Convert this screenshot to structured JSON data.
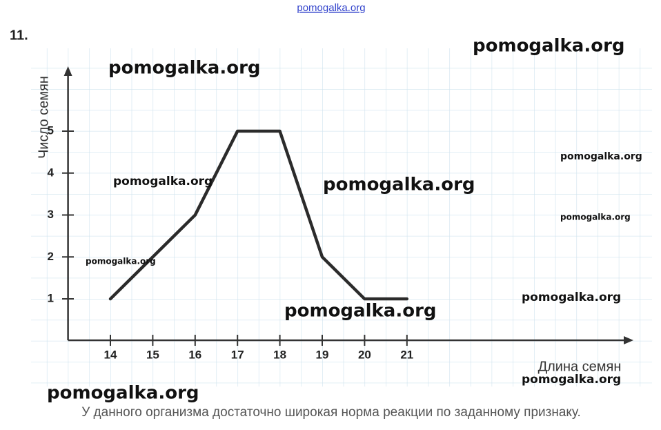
{
  "source_link": "pomogalka.org",
  "problem_number": "11.",
  "chart_data": {
    "type": "line",
    "x": [
      14,
      16,
      17,
      18,
      19,
      20,
      21
    ],
    "values": [
      1,
      3,
      5,
      5,
      2,
      1,
      1
    ],
    "color": "#2b2b2b",
    "xlabel": "Длина семян",
    "ylabel": "Число семян",
    "xlim": [
      13,
      26.3
    ],
    "ylim": [
      0,
      6.5
    ],
    "xticks": [
      14,
      15,
      16,
      17,
      18,
      19,
      20,
      21
    ],
    "yticks": [
      1,
      2,
      3,
      4,
      5
    ]
  },
  "watermarks": [
    "pomogalka.org",
    "pomogalka.org",
    "pomogalka.org",
    "pomogalka.org",
    "pomogalka.org",
    "pomogalka.org",
    "pomogalka.org",
    "pomogalka.org",
    "pomogalka.org",
    "pomogalka.org",
    "pomogalka.org"
  ],
  "answer": "У данного организма достаточно широкая норма реакции по заданному признаку."
}
